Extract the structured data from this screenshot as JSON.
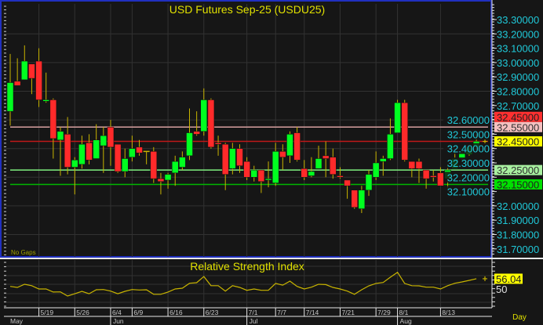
{
  "chart_data": [
    {
      "type": "candlestick",
      "title": "USD Futures Sep-25 (USDU25)",
      "note": "No Gaps",
      "fields": [
        "open",
        "high",
        "low",
        "close"
      ],
      "candles": [
        [
          32.66,
          33.06,
          32.56,
          32.86
        ],
        [
          32.87,
          33.03,
          32.84,
          32.84
        ],
        [
          32.88,
          33.12,
          32.88,
          33.01
        ],
        [
          32.99,
          32.99,
          32.78,
          32.89
        ],
        [
          33.01,
          33.1,
          32.69,
          32.74
        ],
        [
          32.73,
          32.93,
          32.72,
          32.74
        ],
        [
          32.74,
          32.75,
          32.33,
          32.47
        ],
        [
          32.46,
          32.55,
          32.21,
          32.52
        ],
        [
          32.5,
          32.62,
          32.22,
          32.27
        ],
        [
          32.27,
          32.34,
          32.08,
          32.32
        ],
        [
          32.29,
          32.49,
          32.26,
          32.43
        ],
        [
          32.44,
          32.5,
          32.29,
          32.32
        ],
        [
          32.33,
          32.57,
          32.33,
          32.46
        ],
        [
          32.42,
          32.55,
          32.23,
          32.49
        ],
        [
          32.55,
          32.6,
          32.28,
          32.41
        ],
        [
          32.43,
          32.43,
          32.23,
          32.24
        ],
        [
          32.24,
          32.4,
          32.2,
          32.33
        ],
        [
          32.34,
          32.49,
          32.31,
          32.4
        ],
        [
          32.41,
          32.46,
          32.35,
          32.37
        ],
        [
          32.38,
          32.38,
          32.29,
          32.38
        ],
        [
          32.38,
          32.41,
          32.16,
          32.19
        ],
        [
          32.19,
          32.23,
          32.08,
          32.17
        ],
        [
          32.18,
          32.23,
          32.12,
          32.22
        ],
        [
          32.23,
          32.35,
          32.14,
          32.31
        ],
        [
          32.27,
          32.38,
          32.25,
          32.34
        ],
        [
          32.35,
          32.68,
          32.32,
          32.51
        ],
        [
          32.52,
          32.66,
          32.49,
          32.5
        ],
        [
          32.52,
          32.82,
          32.49,
          32.74
        ],
        [
          32.74,
          32.75,
          32.4,
          32.41
        ],
        [
          32.44,
          32.49,
          32.35,
          32.43
        ],
        [
          32.43,
          32.44,
          32.11,
          32.22
        ],
        [
          32.26,
          32.44,
          32.22,
          32.4
        ],
        [
          32.4,
          32.43,
          32.23,
          32.28
        ],
        [
          32.31,
          32.34,
          32.18,
          32.2
        ],
        [
          32.2,
          32.28,
          32.17,
          32.25
        ],
        [
          32.25,
          32.25,
          32.09,
          32.17
        ],
        [
          32.18,
          32.31,
          32.13,
          32.19
        ],
        [
          32.16,
          32.44,
          32.14,
          32.38
        ],
        [
          32.38,
          32.43,
          32.25,
          32.34
        ],
        [
          32.35,
          32.52,
          32.3,
          32.5
        ],
        [
          32.51,
          32.55,
          32.31,
          32.32
        ],
        [
          32.26,
          32.32,
          32.18,
          32.2
        ],
        [
          32.21,
          32.34,
          32.2,
          32.24
        ],
        [
          32.26,
          32.42,
          32.26,
          32.33
        ],
        [
          32.35,
          32.45,
          32.2,
          32.33
        ],
        [
          32.34,
          32.4,
          32.19,
          32.22
        ],
        [
          32.21,
          32.27,
          32.19,
          32.2
        ],
        [
          32.18,
          32.18,
          32.05,
          32.14
        ],
        [
          32.11,
          32.11,
          31.98,
          31.99
        ],
        [
          31.98,
          32.14,
          31.95,
          32.11
        ],
        [
          32.11,
          32.25,
          32.07,
          32.22
        ],
        [
          32.2,
          32.38,
          32.18,
          32.3
        ],
        [
          32.31,
          32.35,
          32.21,
          32.33
        ],
        [
          32.33,
          32.61,
          32.32,
          32.5
        ],
        [
          32.51,
          32.74,
          32.51,
          32.72
        ],
        [
          32.72,
          32.74,
          32.31,
          32.32
        ],
        [
          32.31,
          32.31,
          32.2,
          32.26
        ],
        [
          32.31,
          32.33,
          32.16,
          32.26
        ],
        [
          32.25,
          32.25,
          32.12,
          32.19
        ],
        [
          32.21,
          32.25,
          32.17,
          32.2
        ],
        [
          32.23,
          32.27,
          32.14,
          32.14
        ],
        [
          32.19,
          32.29,
          32.12,
          32.25
        ],
        [
          32.26,
          32.4,
          32.26,
          32.33
        ],
        [
          32.33,
          32.38,
          32.31,
          32.37
        ],
        [
          32.36,
          32.42,
          32.35,
          32.41
        ],
        [
          32.41,
          32.5,
          32.39,
          32.45
        ]
      ],
      "y_ticks": [
        "33.30000",
        "33.20000",
        "33.10000",
        "33.00000",
        "32.90000",
        "32.80000",
        "32.70000",
        "32.60000",
        "32.50000",
        "32.40000",
        "32.30000",
        "32.20000",
        "32.10000",
        "32.00000",
        "31.90000",
        "31.80000",
        "31.70000"
      ],
      "ylim": [
        31.7,
        33.3
      ],
      "grid": true,
      "levels": [
        {
          "price": 32.55,
          "label": "32.55000",
          "color": "#d8a0a0",
          "tag_bg": "#f4c0c0",
          "tag_color": "#303030"
        },
        {
          "price": 32.45,
          "label": "32.45000",
          "color": "#c01818",
          "tag_bg": "#ff3030",
          "tag_color": "#202020"
        },
        {
          "price": 32.25,
          "label": "32.25000",
          "color": "#80f080",
          "tag_bg": "#a8f0a0",
          "tag_color": "#303030"
        },
        {
          "price": 32.15,
          "label": "32.15000",
          "color": "#00b800",
          "tag_bg": "#00e000",
          "tag_color": "#202020"
        }
      ],
      "last_price": {
        "price": 32.45,
        "label": "32.45000",
        "tag_bg": "#ffff00",
        "tag_color": "#202020"
      },
      "colors": {
        "up": "#00ff20",
        "down": "#ff2a2a",
        "wick": "#c8b400",
        "axis_text": "#20c8d8",
        "title": "#e0e000",
        "background": "#161616",
        "grid": "#323232"
      }
    },
    {
      "type": "line",
      "title": "Relative Strength Index",
      "values": [
        47.7,
        46.6,
        50.0,
        48.5,
        44.9,
        44.9,
        41.5,
        41.7,
        37.2,
        39.7,
        42.3,
        39.7,
        44.0,
        44.3,
        42.6,
        39.7,
        42.3,
        44.3,
        43.8,
        44.0,
        39.1,
        39.1,
        41.5,
        44.9,
        45.7,
        51.1,
        51.7,
        58.5,
        48.5,
        48.5,
        42.6,
        48.5,
        46.6,
        43.4,
        44.9,
        43.4,
        43.4,
        50.9,
        49.1,
        53.4,
        47.7,
        44.9,
        46.8,
        50.0,
        49.7,
        46.6,
        44.9,
        42.6,
        39.1,
        44.0,
        48.3,
        50.9,
        52.0,
        57.7,
        63.1,
        50.9,
        48.5,
        48.3,
        46.8,
        46.8,
        44.9,
        48.5,
        51.1,
        52.6,
        54.3,
        56.04
      ],
      "y_tick_label": "50",
      "last_value_label": "56.04",
      "colors": {
        "line": "#c8b400",
        "tag_bg": "#ffff00"
      }
    }
  ],
  "x_axis": {
    "date_ticks": [
      {
        "label": "5/19",
        "index": 4
      },
      {
        "label": "5/26",
        "index": 9
      },
      {
        "label": "6/4",
        "index": 14
      },
      {
        "label": "6/9",
        "index": 17
      },
      {
        "label": "6/16",
        "index": 22
      },
      {
        "label": "6/23",
        "index": 27
      },
      {
        "label": "7/1",
        "index": 33
      },
      {
        "label": "7/7",
        "index": 37
      },
      {
        "label": "7/14",
        "index": 41
      },
      {
        "label": "7/21",
        "index": 46
      },
      {
        "label": "7/29",
        "index": 51
      },
      {
        "label": "8/1",
        "index": 54
      },
      {
        "label": "8/13",
        "index": 60
      }
    ],
    "month_ticks": [
      {
        "label": "May",
        "index": 0
      },
      {
        "label": "Jun",
        "index": 14
      },
      {
        "label": "Jul",
        "index": 33
      },
      {
        "label": "Aug",
        "index": 54
      }
    ],
    "period": "Day"
  }
}
